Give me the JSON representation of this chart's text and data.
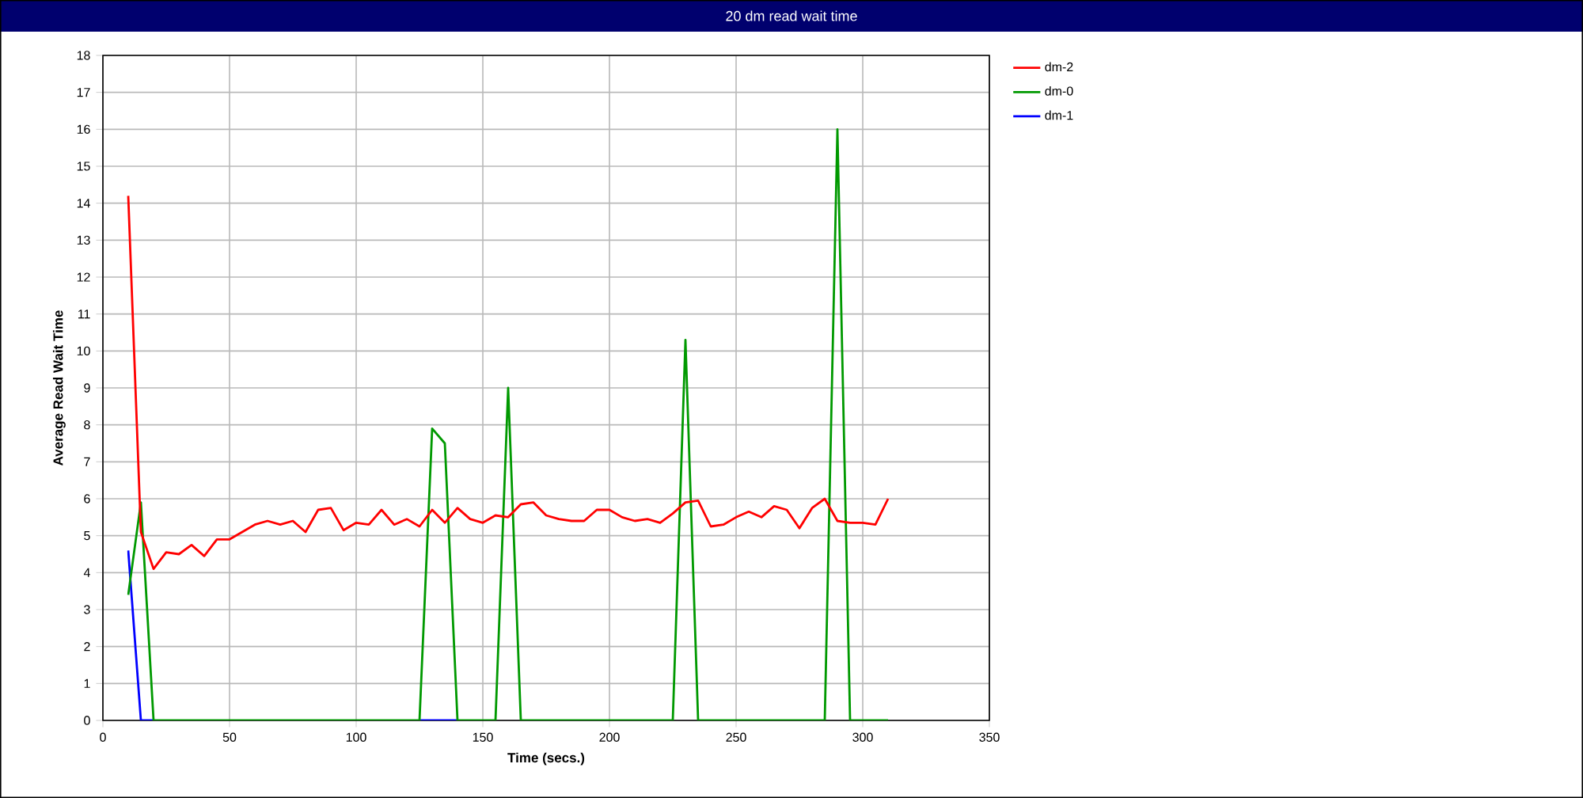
{
  "chart_data": {
    "type": "line",
    "title": "20 dm read wait time",
    "xlabel": "Time (secs.)",
    "ylabel": "Average Read Wait Time",
    "x": [
      10,
      15,
      20,
      25,
      30,
      35,
      40,
      45,
      50,
      55,
      60,
      65,
      70,
      75,
      80,
      85,
      90,
      95,
      100,
      105,
      110,
      115,
      120,
      125,
      130,
      135,
      140,
      145,
      150,
      155,
      160,
      165,
      170,
      175,
      180,
      185,
      190,
      195,
      200,
      205,
      210,
      215,
      220,
      225,
      230,
      235,
      240,
      245,
      250,
      255,
      260,
      265,
      270,
      275,
      280,
      285,
      290,
      295,
      300,
      305,
      310
    ],
    "series": [
      {
        "name": "dm-2",
        "color": "#ff0000",
        "values": [
          14.2,
          5.1,
          4.1,
          4.55,
          4.5,
          4.75,
          4.45,
          4.9,
          4.9,
          5.1,
          5.3,
          5.4,
          5.3,
          5.4,
          5.1,
          5.7,
          5.75,
          5.15,
          5.35,
          5.3,
          5.7,
          5.3,
          5.45,
          5.25,
          5.7,
          5.35,
          5.75,
          5.45,
          5.35,
          5.55,
          5.5,
          5.85,
          5.9,
          5.55,
          5.45,
          5.4,
          5.4,
          5.7,
          5.7,
          5.5,
          5.4,
          5.45,
          5.35,
          5.6,
          5.9,
          5.95,
          5.25,
          5.3,
          5.5,
          5.65,
          5.5,
          5.8,
          5.7,
          5.2,
          5.75,
          6.0,
          5.4,
          5.35,
          5.35,
          5.3,
          6.0
        ]
      },
      {
        "name": "dm-0",
        "color": "#009900",
        "values": [
          3.4,
          5.9,
          0,
          0,
          0,
          0,
          0,
          0,
          0,
          0,
          0,
          0,
          0,
          0,
          0,
          0,
          0,
          0,
          0,
          0,
          0,
          0,
          0,
          0,
          7.9,
          7.5,
          0,
          0,
          0,
          0,
          9.0,
          0,
          0,
          0,
          0,
          0,
          0,
          0,
          0,
          0,
          0,
          0,
          0,
          0,
          10.3,
          0,
          0,
          0,
          0,
          0,
          0,
          0,
          0,
          0,
          0,
          0,
          16,
          0,
          0,
          0,
          0
        ]
      },
      {
        "name": "dm-1",
        "color": "#0000ff",
        "values": [
          4.6,
          0,
          0,
          null,
          null,
          null,
          null,
          null,
          null,
          null,
          null,
          null,
          null,
          null,
          null,
          null,
          null,
          null,
          null,
          null,
          null,
          null,
          null,
          0,
          0,
          0,
          0,
          null,
          null,
          null,
          null,
          null,
          null,
          null,
          null,
          null,
          null,
          null,
          null,
          null,
          null,
          null,
          null,
          null,
          null,
          null,
          null,
          null,
          null,
          null,
          null,
          null,
          null,
          null,
          null,
          null,
          null,
          null,
          null,
          null,
          null
        ]
      }
    ],
    "xlim": [
      0,
      350
    ],
    "ylim": [
      0,
      18
    ],
    "xticks": [
      0,
      50,
      100,
      150,
      200,
      250,
      300,
      350
    ],
    "yticks": [
      0,
      1,
      2,
      3,
      4,
      5,
      6,
      7,
      8,
      9,
      10,
      11,
      12,
      13,
      14,
      15,
      16,
      17,
      18
    ],
    "grid": true,
    "legend": "top right"
  }
}
